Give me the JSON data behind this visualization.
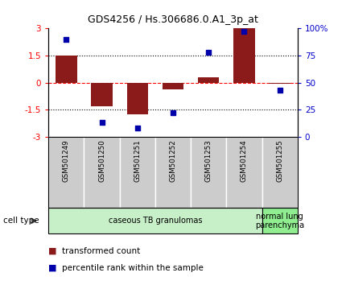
{
  "title": "GDS4256 / Hs.306686.0.A1_3p_at",
  "samples": [
    "GSM501249",
    "GSM501250",
    "GSM501251",
    "GSM501252",
    "GSM501253",
    "GSM501254",
    "GSM501255"
  ],
  "transformed_count": [
    1.5,
    -1.3,
    -1.75,
    -0.38,
    0.3,
    3.0,
    -0.05
  ],
  "percentile_rank": [
    90,
    13,
    8,
    22,
    78,
    97,
    43
  ],
  "ylim_left": [
    -3,
    3
  ],
  "ylim_right": [
    0,
    100
  ],
  "yticks_left": [
    -3,
    -1.5,
    0,
    1.5,
    3
  ],
  "yticks_right": [
    0,
    25,
    50,
    75,
    100
  ],
  "ytick_labels_right": [
    "0",
    "25",
    "50",
    "75",
    "100%"
  ],
  "bar_color": "#8B1A1A",
  "scatter_color": "#0000AA",
  "cell_type_groups": [
    {
      "label": "caseous TB granulomas",
      "start": 0,
      "end": 5,
      "color": "#c8f0c8"
    },
    {
      "label": "normal lung\nparenchyma",
      "start": 6,
      "end": 6,
      "color": "#90ee90"
    }
  ],
  "sample_box_color": "#cccccc",
  "legend_red_label": "transformed count",
  "legend_blue_label": "percentile rank within the sample",
  "cell_type_label": "cell type",
  "background_color": "#ffffff"
}
